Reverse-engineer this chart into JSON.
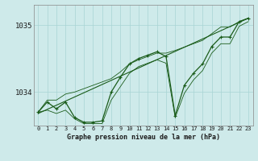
{
  "title": "Graphe pression niveau de la mer (hPa)",
  "bg_color": "#ceeaea",
  "grid_color": "#a8d4d4",
  "line_color": "#1a5c1a",
  "x_labels": [
    "0",
    "1",
    "2",
    "3",
    "4",
    "5",
    "6",
    "7",
    "8",
    "9",
    "10",
    "11",
    "12",
    "13",
    "14",
    "15",
    "16",
    "17",
    "18",
    "19",
    "20",
    "21",
    "22",
    "23"
  ],
  "yticks": [
    1034,
    1035
  ],
  "ylim": [
    1033.5,
    1035.3
  ],
  "xlim": [
    -0.5,
    23.5
  ],
  "main_series": [
    1033.7,
    1033.85,
    1033.75,
    1033.85,
    1033.62,
    1033.55,
    1033.55,
    1033.57,
    1034.0,
    1034.22,
    1034.42,
    1034.5,
    1034.55,
    1034.6,
    1034.53,
    1033.65,
    1034.1,
    1034.28,
    1034.42,
    1034.68,
    1034.82,
    1034.82,
    1035.05,
    1035.1
  ],
  "trend_x": [
    0,
    23
  ],
  "trend_y": [
    1033.68,
    1035.1
  ],
  "envelope_upper": [
    1033.7,
    1033.88,
    1033.88,
    1033.97,
    1034.0,
    1034.05,
    1034.1,
    1034.15,
    1034.2,
    1034.3,
    1034.42,
    1034.48,
    1034.53,
    1034.58,
    1034.58,
    1034.62,
    1034.67,
    1034.72,
    1034.77,
    1034.87,
    1034.97,
    1034.97,
    1035.05,
    1035.1
  ],
  "envelope_lower": [
    1033.7,
    1033.73,
    1033.68,
    1033.73,
    1033.6,
    1033.53,
    1033.53,
    1033.53,
    1033.88,
    1034.08,
    1034.28,
    1034.38,
    1034.43,
    1034.48,
    1034.43,
    1033.62,
    1033.98,
    1034.18,
    1034.32,
    1034.58,
    1034.72,
    1034.72,
    1034.98,
    1035.05
  ]
}
